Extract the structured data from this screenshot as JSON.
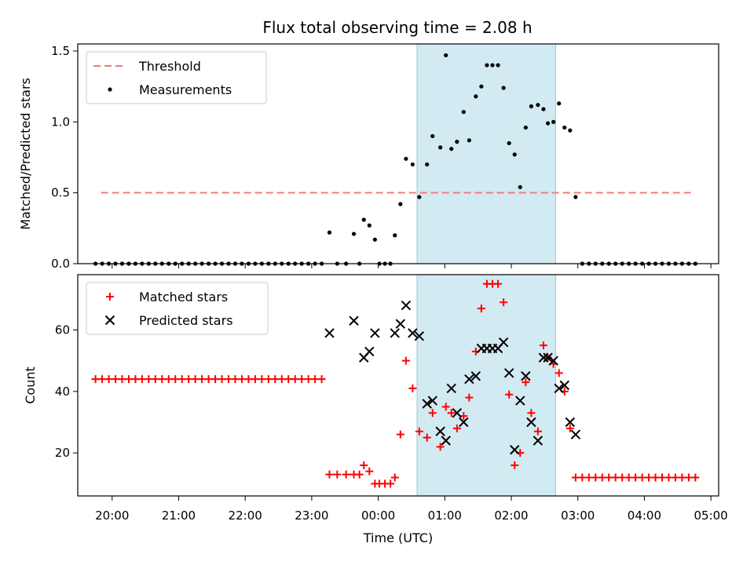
{
  "title": "Flux total observing time = 2.08 h",
  "xlabel": "Time (UTC)",
  "x_ticks": [
    "20:00",
    "21:00",
    "22:00",
    "23:00",
    "00:00",
    "01:00",
    "02:00",
    "03:00",
    "04:00",
    "05:00"
  ],
  "colors": {
    "threshold": "#f47a7a",
    "measurements": "#000000",
    "matched": "#ff0000",
    "predicted": "#000000",
    "span": "#add8e6"
  },
  "chart_data": [
    {
      "type": "scatter",
      "ylabel": "Matched/Predicted stars",
      "xlim": [
        "19:29",
        "05:07"
      ],
      "ylim": [
        0,
        1.55
      ],
      "y_ticks": [
        "0.0",
        "0.5",
        "1.0",
        "1.5"
      ],
      "shaded_span": [
        "00:35",
        "02:40"
      ],
      "legend_position": "upper-left",
      "threshold": {
        "name": "Threshold",
        "value": 0.5,
        "x_range": [
          "19:50",
          "04:45"
        ]
      },
      "series": [
        {
          "name": "Measurements",
          "points": [
            [
              "19:45",
              0
            ],
            [
              "19:51",
              0
            ],
            [
              "19:57",
              0
            ],
            [
              "20:03",
              0
            ],
            [
              "20:09",
              0
            ],
            [
              "20:15",
              0
            ],
            [
              "20:21",
              0
            ],
            [
              "20:27",
              0
            ],
            [
              "20:33",
              0
            ],
            [
              "20:39",
              0
            ],
            [
              "20:45",
              0
            ],
            [
              "20:51",
              0
            ],
            [
              "20:57",
              0
            ],
            [
              "21:03",
              0
            ],
            [
              "21:09",
              0
            ],
            [
              "21:15",
              0
            ],
            [
              "21:21",
              0
            ],
            [
              "21:27",
              0
            ],
            [
              "21:33",
              0
            ],
            [
              "21:39",
              0
            ],
            [
              "21:45",
              0
            ],
            [
              "21:51",
              0
            ],
            [
              "21:57",
              0
            ],
            [
              "22:03",
              0
            ],
            [
              "22:09",
              0
            ],
            [
              "22:15",
              0
            ],
            [
              "22:21",
              0
            ],
            [
              "22:27",
              0
            ],
            [
              "22:33",
              0
            ],
            [
              "22:39",
              0
            ],
            [
              "22:45",
              0
            ],
            [
              "22:51",
              0
            ],
            [
              "22:57",
              0
            ],
            [
              "23:03",
              0
            ],
            [
              "23:09",
              0
            ],
            [
              "23:16",
              0.22
            ],
            [
              "23:23",
              0
            ],
            [
              "23:31",
              0
            ],
            [
              "23:38",
              0.21
            ],
            [
              "23:43",
              0
            ],
            [
              "23:47",
              0.31
            ],
            [
              "23:52",
              0.27
            ],
            [
              "23:57",
              0.17
            ],
            [
              "00:01",
              0
            ],
            [
              "00:06",
              0
            ],
            [
              "00:11",
              0
            ],
            [
              "00:15",
              0.2
            ],
            [
              "00:20",
              0.42
            ],
            [
              "00:25",
              0.74
            ],
            [
              "00:31",
              0.7
            ],
            [
              "00:37",
              0.47
            ],
            [
              "00:44",
              0.7
            ],
            [
              "00:49",
              0.9
            ],
            [
              "00:56",
              0.82
            ],
            [
              "01:01",
              1.47
            ],
            [
              "01:06",
              0.81
            ],
            [
              "01:11",
              0.86
            ],
            [
              "01:17",
              1.07
            ],
            [
              "01:22",
              0.87
            ],
            [
              "01:28",
              1.18
            ],
            [
              "01:33",
              1.25
            ],
            [
              "01:38",
              1.4
            ],
            [
              "01:43",
              1.4
            ],
            [
              "01:48",
              1.4
            ],
            [
              "01:53",
              1.24
            ],
            [
              "01:58",
              0.85
            ],
            [
              "02:03",
              0.77
            ],
            [
              "02:08",
              0.54
            ],
            [
              "02:13",
              0.96
            ],
            [
              "02:18",
              1.11
            ],
            [
              "02:24",
              1.12
            ],
            [
              "02:29",
              1.09
            ],
            [
              "02:33",
              0.99
            ],
            [
              "02:38",
              1.0
            ],
            [
              "02:43",
              1.13
            ],
            [
              "02:48",
              0.96
            ],
            [
              "02:53",
              0.94
            ],
            [
              "02:58",
              0.47
            ],
            [
              "03:04",
              0
            ],
            [
              "03:10",
              0
            ],
            [
              "03:16",
              0
            ],
            [
              "03:22",
              0
            ],
            [
              "03:28",
              0
            ],
            [
              "03:34",
              0
            ],
            [
              "03:40",
              0
            ],
            [
              "03:46",
              0
            ],
            [
              "03:52",
              0
            ],
            [
              "03:58",
              0
            ],
            [
              "04:04",
              0
            ],
            [
              "04:10",
              0
            ],
            [
              "04:16",
              0
            ],
            [
              "04:22",
              0
            ],
            [
              "04:28",
              0
            ],
            [
              "04:34",
              0
            ],
            [
              "04:40",
              0
            ],
            [
              "04:46",
              0
            ]
          ]
        }
      ]
    },
    {
      "type": "scatter",
      "ylabel": "Count",
      "xlim": [
        "19:29",
        "05:07"
      ],
      "ylim": [
        6,
        78
      ],
      "y_ticks": [
        "20",
        "40",
        "60"
      ],
      "shaded_span": [
        "00:35",
        "02:40"
      ],
      "legend_position": "upper-left",
      "series": [
        {
          "name": "Matched stars",
          "points": [
            [
              "19:45",
              44
            ],
            [
              "19:51",
              44
            ],
            [
              "19:57",
              44
            ],
            [
              "20:03",
              44
            ],
            [
              "20:09",
              44
            ],
            [
              "20:15",
              44
            ],
            [
              "20:21",
              44
            ],
            [
              "20:27",
              44
            ],
            [
              "20:33",
              44
            ],
            [
              "20:39",
              44
            ],
            [
              "20:45",
              44
            ],
            [
              "20:51",
              44
            ],
            [
              "20:57",
              44
            ],
            [
              "21:03",
              44
            ],
            [
              "21:09",
              44
            ],
            [
              "21:15",
              44
            ],
            [
              "21:21",
              44
            ],
            [
              "21:27",
              44
            ],
            [
              "21:33",
              44
            ],
            [
              "21:39",
              44
            ],
            [
              "21:45",
              44
            ],
            [
              "21:51",
              44
            ],
            [
              "21:57",
              44
            ],
            [
              "22:03",
              44
            ],
            [
              "22:09",
              44
            ],
            [
              "22:15",
              44
            ],
            [
              "22:21",
              44
            ],
            [
              "22:27",
              44
            ],
            [
              "22:33",
              44
            ],
            [
              "22:39",
              44
            ],
            [
              "22:45",
              44
            ],
            [
              "22:51",
              44
            ],
            [
              "22:57",
              44
            ],
            [
              "23:03",
              44
            ],
            [
              "23:09",
              44
            ],
            [
              "23:16",
              13
            ],
            [
              "23:23",
              13
            ],
            [
              "23:31",
              13
            ],
            [
              "23:38",
              13
            ],
            [
              "23:43",
              13
            ],
            [
              "23:47",
              16
            ],
            [
              "23:52",
              14
            ],
            [
              "23:57",
              10
            ],
            [
              "00:01",
              10
            ],
            [
              "00:06",
              10
            ],
            [
              "00:11",
              10
            ],
            [
              "00:15",
              12
            ],
            [
              "00:20",
              26
            ],
            [
              "00:25",
              50
            ],
            [
              "00:31",
              41
            ],
            [
              "00:37",
              27
            ],
            [
              "00:44",
              25
            ],
            [
              "00:49",
              33
            ],
            [
              "00:56",
              22
            ],
            [
              "01:01",
              35
            ],
            [
              "01:06",
              33
            ],
            [
              "01:11",
              28
            ],
            [
              "01:17",
              32
            ],
            [
              "01:22",
              38
            ],
            [
              "01:28",
              53
            ],
            [
              "01:33",
              67
            ],
            [
              "01:38",
              75
            ],
            [
              "01:43",
              75
            ],
            [
              "01:48",
              75
            ],
            [
              "01:53",
              69
            ],
            [
              "01:58",
              39
            ],
            [
              "02:03",
              16
            ],
            [
              "02:08",
              20
            ],
            [
              "02:13",
              43
            ],
            [
              "02:18",
              33
            ],
            [
              "02:24",
              27
            ],
            [
              "02:29",
              55
            ],
            [
              "02:33",
              51
            ],
            [
              "02:38",
              49
            ],
            [
              "02:43",
              46
            ],
            [
              "02:48",
              40
            ],
            [
              "02:53",
              28
            ],
            [
              "02:58",
              12
            ],
            [
              "03:04",
              12
            ],
            [
              "03:10",
              12
            ],
            [
              "03:16",
              12
            ],
            [
              "03:22",
              12
            ],
            [
              "03:28",
              12
            ],
            [
              "03:34",
              12
            ],
            [
              "03:40",
              12
            ],
            [
              "03:46",
              12
            ],
            [
              "03:52",
              12
            ],
            [
              "03:58",
              12
            ],
            [
              "04:04",
              12
            ],
            [
              "04:10",
              12
            ],
            [
              "04:16",
              12
            ],
            [
              "04:22",
              12
            ],
            [
              "04:28",
              12
            ],
            [
              "04:34",
              12
            ],
            [
              "04:40",
              12
            ],
            [
              "04:46",
              12
            ]
          ]
        },
        {
          "name": "Predicted stars",
          "points": [
            [
              "23:16",
              59
            ],
            [
              "23:38",
              63
            ],
            [
              "23:47",
              51
            ],
            [
              "23:52",
              53
            ],
            [
              "23:57",
              59
            ],
            [
              "00:15",
              59
            ],
            [
              "00:20",
              62
            ],
            [
              "00:25",
              68
            ],
            [
              "00:31",
              59
            ],
            [
              "00:37",
              58
            ],
            [
              "00:44",
              36
            ],
            [
              "00:49",
              37
            ],
            [
              "00:56",
              27
            ],
            [
              "01:01",
              24
            ],
            [
              "01:06",
              41
            ],
            [
              "01:11",
              33
            ],
            [
              "01:17",
              30
            ],
            [
              "01:22",
              44
            ],
            [
              "01:28",
              45
            ],
            [
              "01:33",
              54
            ],
            [
              "01:38",
              54
            ],
            [
              "01:43",
              54
            ],
            [
              "01:48",
              54
            ],
            [
              "01:53",
              56
            ],
            [
              "01:58",
              46
            ],
            [
              "02:03",
              21
            ],
            [
              "02:08",
              37
            ],
            [
              "02:13",
              45
            ],
            [
              "02:18",
              30
            ],
            [
              "02:24",
              24
            ],
            [
              "02:29",
              51
            ],
            [
              "02:33",
              51
            ],
            [
              "02:38",
              50
            ],
            [
              "02:43",
              41
            ],
            [
              "02:48",
              42
            ],
            [
              "02:53",
              30
            ],
            [
              "02:58",
              26
            ]
          ]
        }
      ]
    }
  ]
}
